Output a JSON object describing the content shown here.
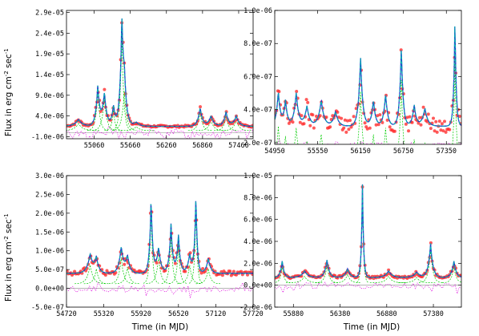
{
  "figure": {
    "ylabel_main": "Flux in erg cm",
    "ylabel_sup1": "-2",
    "ylabel_mid": " sec",
    "ylabel_sup2": "-1",
    "xlabel": "Time (in MJD)"
  },
  "colors": {
    "observed": "#ff3030",
    "model_fit": "#2a2ad0",
    "model_dash": "#00b0b0",
    "components": "#00cc00",
    "residuals": "#dd00dd",
    "axis": "#000000"
  },
  "chart_data": [
    {
      "type": "line",
      "panel": "top-left",
      "xlim": [
        54600,
        57700
      ],
      "ylim": [
        -1.5e-06,
        2.95e-05
      ],
      "xticks": [
        55060,
        55660,
        56260,
        56860,
        57460
      ],
      "xtick_labels": [
        "55060",
        "55660",
        "56260",
        "56860",
        "57460"
      ],
      "yticks": [
        -1e-06,
        4e-06,
        9e-06,
        1.4e-05,
        1.9e-05,
        2.4e-05,
        2.9e-05
      ],
      "ytick_labels": [
        "-1.0e-06",
        "4.0e-06",
        "9.0e-06",
        "1.4e-05",
        "1.9e-05",
        "2.4e-05",
        "2.9e-05"
      ],
      "baseline": 1.5e-06,
      "peaks": [
        {
          "x": 54800,
          "y": 3.2e-06,
          "w": 70
        },
        {
          "x": 55120,
          "y": 1.1e-05,
          "w": 35
        },
        {
          "x": 55230,
          "y": 9.5e-06,
          "w": 40
        },
        {
          "x": 55380,
          "y": 6.5e-06,
          "w": 30
        },
        {
          "x": 55520,
          "y": 2.55e-05,
          "w": 30
        },
        {
          "x": 55560,
          "y": 1.1e-05,
          "w": 40
        },
        {
          "x": 55760,
          "y": 2.5e-06,
          "w": 60
        },
        {
          "x": 56820,
          "y": 6e-06,
          "w": 40
        },
        {
          "x": 57000,
          "y": 4e-06,
          "w": 50
        },
        {
          "x": 57250,
          "y": 5e-06,
          "w": 40
        },
        {
          "x": 57420,
          "y": 4e-06,
          "w": 50
        }
      ]
    },
    {
      "type": "line",
      "panel": "top-right",
      "xlim": [
        54950,
        57560
      ],
      "ylim": [
        1.9e-07,
        1e-06
      ],
      "xticks": [
        54950,
        55550,
        56150,
        56750,
        57350
      ],
      "xtick_labels": [
        "54950",
        "55550",
        "56150",
        "56750",
        "57350"
      ],
      "yticks": [
        2e-07,
        4e-07,
        6e-07,
        8e-07,
        1e-06
      ],
      "ytick_labels": [
        "2.0e-07",
        "4.0e-07",
        "6.0e-07",
        "8.0e-07",
        "1.0e-06"
      ],
      "baseline": 3e-07,
      "peaks": [
        {
          "x": 55000,
          "y": 5.1e-07,
          "w": 30
        },
        {
          "x": 55100,
          "y": 4.5e-07,
          "w": 30
        },
        {
          "x": 55250,
          "y": 5e-07,
          "w": 35
        },
        {
          "x": 55400,
          "y": 4.2e-07,
          "w": 40
        },
        {
          "x": 55600,
          "y": 4.6e-07,
          "w": 40
        },
        {
          "x": 55800,
          "y": 3.9e-07,
          "w": 40
        },
        {
          "x": 56150,
          "y": 7.2e-07,
          "w": 30
        },
        {
          "x": 56330,
          "y": 4.6e-07,
          "w": 30
        },
        {
          "x": 56500,
          "y": 5e-07,
          "w": 30
        },
        {
          "x": 56720,
          "y": 7.9e-07,
          "w": 25
        },
        {
          "x": 56900,
          "y": 4.3e-07,
          "w": 30
        },
        {
          "x": 57050,
          "y": 4.1e-07,
          "w": 40
        },
        {
          "x": 57470,
          "y": 9.5e-07,
          "w": 18
        }
      ]
    },
    {
      "type": "line",
      "panel": "bottom-left",
      "xlim": [
        54720,
        57720
      ],
      "ylim": [
        -5e-07,
        3e-06
      ],
      "xticks": [
        54720,
        55320,
        55920,
        56520,
        57120,
        57720
      ],
      "xtick_labels": [
        "54720",
        "55320",
        "55920",
        "56520",
        "57120",
        "57720"
      ],
      "yticks": [
        -5e-07,
        0,
        5e-07,
        1e-06,
        1.5e-06,
        2e-06,
        2.5e-06,
        3e-06
      ],
      "ytick_labels": [
        "-5.0e-07",
        "0.0e+00",
        "5.0e-07",
        "1.0e-06",
        "1.5e-06",
        "2.0e-06",
        "2.5e-06",
        "3.0e-06"
      ],
      "baseline": 4e-07,
      "peaks": [
        {
          "x": 55100,
          "y": 9e-07,
          "w": 50
        },
        {
          "x": 55200,
          "y": 8e-07,
          "w": 40
        },
        {
          "x": 55600,
          "y": 1.1e-06,
          "w": 40
        },
        {
          "x": 55700,
          "y": 8.5e-07,
          "w": 40
        },
        {
          "x": 56080,
          "y": 2.4e-06,
          "w": 25
        },
        {
          "x": 56200,
          "y": 1.1e-06,
          "w": 40
        },
        {
          "x": 56400,
          "y": 1.7e-06,
          "w": 30
        },
        {
          "x": 56520,
          "y": 1.4e-06,
          "w": 30
        },
        {
          "x": 56700,
          "y": 9e-07,
          "w": 40
        },
        {
          "x": 56800,
          "y": 2.5e-06,
          "w": 22
        },
        {
          "x": 57000,
          "y": 8e-07,
          "w": 40
        }
      ]
    },
    {
      "type": "line",
      "panel": "bottom-right",
      "xlim": [
        55680,
        57680
      ],
      "ylim": [
        -2e-06,
        1e-05
      ],
      "xticks": [
        55880,
        56380,
        56880,
        57380
      ],
      "xtick_labels": [
        "55880",
        "56380",
        "56880",
        "57380"
      ],
      "yticks": [
        -2e-06,
        0,
        2e-06,
        4e-06,
        6e-06,
        8e-06,
        1e-05
      ],
      "ytick_labels": [
        "-2.0e-06",
        "0.0e+00",
        "2.0e-06",
        "4.0e-06",
        "6.0e-06",
        "8.0e-06",
        "1.0e-05"
      ],
      "baseline": 7e-07,
      "peaks": [
        {
          "x": 55760,
          "y": 2.2e-06,
          "w": 20
        },
        {
          "x": 56000,
          "y": 1.3e-06,
          "w": 40
        },
        {
          "x": 56240,
          "y": 2.3e-06,
          "w": 25
        },
        {
          "x": 56460,
          "y": 1.5e-06,
          "w": 30
        },
        {
          "x": 56620,
          "y": 9.2e-06,
          "w": 12
        },
        {
          "x": 56900,
          "y": 1.3e-06,
          "w": 40
        },
        {
          "x": 57200,
          "y": 1.2e-06,
          "w": 40
        },
        {
          "x": 57350,
          "y": 3.8e-06,
          "w": 25
        },
        {
          "x": 57600,
          "y": 2.2e-06,
          "w": 25
        }
      ]
    }
  ]
}
